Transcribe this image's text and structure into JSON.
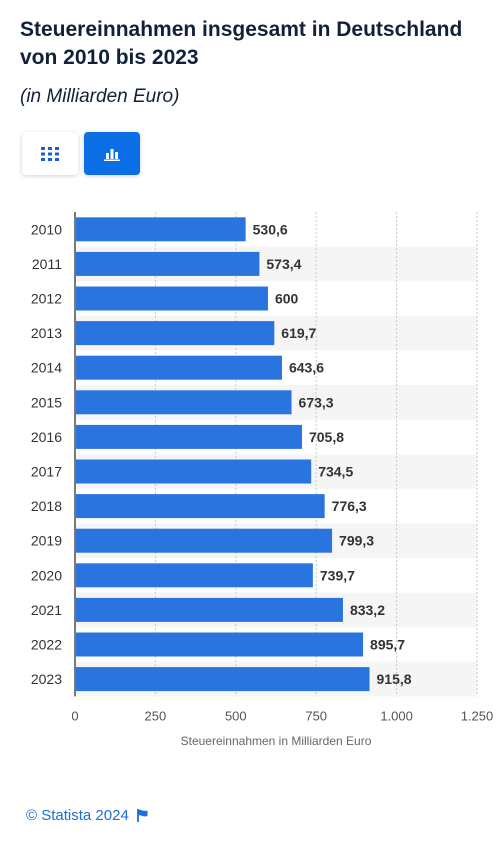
{
  "header": {
    "title": "Steuereinnahmen insgesamt in Deutschland von 2010 bis 2023",
    "subtitle": "(in Milliarden Euro)"
  },
  "view_toggle": {
    "table_icon": "grid-icon",
    "chart_icon": "bar-chart-icon",
    "active": "chart"
  },
  "footer": {
    "credit": "© Statista 2024",
    "flag_icon": "flag-icon"
  },
  "colors": {
    "bar": "#2a74e0",
    "accent": "#0c6ee4",
    "stripe": "#f5f5f5",
    "link": "#1b6fd8"
  },
  "chart_data": {
    "type": "bar",
    "orientation": "horizontal",
    "categories": [
      "2010",
      "2011",
      "2012",
      "2013",
      "2014",
      "2015",
      "2016",
      "2017",
      "2018",
      "2019",
      "2020",
      "2021",
      "2022",
      "2023"
    ],
    "values": [
      530.6,
      573.4,
      600,
      619.7,
      643.6,
      673.3,
      705.8,
      734.5,
      776.3,
      799.3,
      739.7,
      833.2,
      895.7,
      915.8
    ],
    "value_labels": [
      "530,6",
      "573,4",
      "600",
      "619,7",
      "643,6",
      "673,3",
      "705,8",
      "734,5",
      "776,3",
      "799,3",
      "739,7",
      "833,2",
      "895,7",
      "915,8"
    ],
    "xlim": [
      0,
      1250
    ],
    "xticks": [
      0,
      250,
      500,
      750,
      1000,
      1250
    ],
    "xtick_labels": [
      "0",
      "250",
      "500",
      "750",
      "1.000",
      "1.250"
    ],
    "xlabel": "Steuereinnahmen in Milliarden Euro",
    "ylabel": "",
    "grid": "vertical dashed"
  }
}
